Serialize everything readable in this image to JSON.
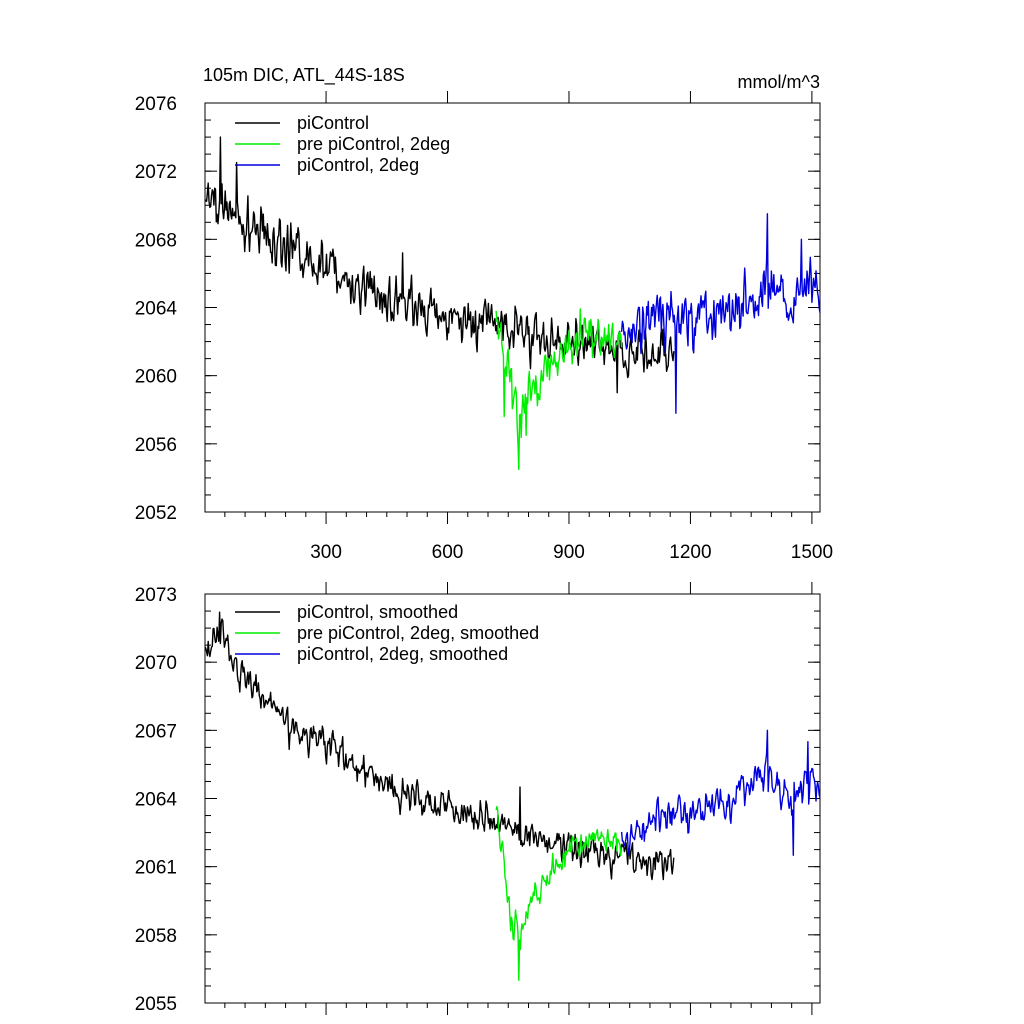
{
  "chart_data": [
    {
      "type": "line",
      "title_left": "105m DIC, ATL_44S-18S",
      "title_right": "mmol/m^3",
      "xlim": [
        1,
        1520
      ],
      "ylim": [
        2052,
        2076
      ],
      "yticks": [
        2052,
        2056,
        2060,
        2064,
        2068,
        2072,
        2076
      ],
      "xticks": [
        300,
        600,
        900,
        1200,
        1500
      ],
      "show_xtick_labels": true,
      "legend": "top-left",
      "series": [
        {
          "name": "piControl",
          "color": "#000000",
          "x_range": [
            1,
            1160
          ],
          "trend": [
            [
              1,
              2070.5
            ],
            [
              100,
              2069.0
            ],
            [
              200,
              2067.5
            ],
            [
              300,
              2066.3
            ],
            [
              400,
              2065.2
            ],
            [
              500,
              2064.2
            ],
            [
              600,
              2063.6
            ],
            [
              700,
              2063.0
            ],
            [
              800,
              2062.3
            ],
            [
              900,
              2061.9
            ],
            [
              1000,
              2061.6
            ],
            [
              1100,
              2061.3
            ],
            [
              1160,
              2061.2
            ]
          ],
          "noise": 1.2,
          "spikes": [
            [
              40,
              2074.0
            ],
            [
              80,
              2072.5
            ],
            [
              490,
              2067.2
            ],
            [
              1020,
              2059.0
            ]
          ]
        },
        {
          "name": "pre piControl, 2deg",
          "color": "#00ee00",
          "x_range": [
            720,
            1030
          ],
          "trend": [
            [
              720,
              2063.8
            ],
            [
              745,
              2061.0
            ],
            [
              760,
              2059.0
            ],
            [
              778,
              2057.0
            ],
            [
              800,
              2059.0
            ],
            [
              830,
              2059.8
            ],
            [
              870,
              2061.0
            ],
            [
              910,
              2062.0
            ],
            [
              960,
              2062.5
            ],
            [
              1030,
              2062.0
            ]
          ],
          "noise": 1.1,
          "spikes": [
            [
              740,
              2057.6
            ],
            [
              776,
              2054.5
            ],
            [
              795,
              2056.5
            ]
          ]
        },
        {
          "name": "piControl, 2deg",
          "color": "#0000dd",
          "x_range": [
            1030,
            1520
          ],
          "trend": [
            [
              1030,
              2062.0
            ],
            [
              1100,
              2063.2
            ],
            [
              1150,
              2063.6
            ],
            [
              1200,
              2063.2
            ],
            [
              1300,
              2063.8
            ],
            [
              1360,
              2065.0
            ],
            [
              1400,
              2065.2
            ],
            [
              1450,
              2064.0
            ],
            [
              1500,
              2065.5
            ],
            [
              1520,
              2064.0
            ]
          ],
          "noise": 1.3,
          "spikes": [
            [
              1165,
              2057.8
            ],
            [
              1390,
              2069.5
            ],
            [
              1475,
              2068.0
            ]
          ]
        }
      ]
    },
    {
      "type": "line",
      "xlim": [
        1,
        1520
      ],
      "ylim": [
        2055,
        2073
      ],
      "yticks": [
        2055,
        2058,
        2061,
        2064,
        2067,
        2070,
        2073
      ],
      "xticks": [
        300,
        600,
        900,
        1200,
        1500
      ],
      "show_xtick_labels": false,
      "legend": "top-left",
      "series": [
        {
          "name": "piControl, smoothed",
          "color": "#000000",
          "x_range": [
            1,
            1160
          ],
          "trend": [
            [
              1,
              2070.5
            ],
            [
              40,
              2071.5
            ],
            [
              100,
              2069.0
            ],
            [
              200,
              2067.5
            ],
            [
              300,
              2066.3
            ],
            [
              400,
              2065.2
            ],
            [
              500,
              2064.2
            ],
            [
              600,
              2063.6
            ],
            [
              700,
              2063.0
            ],
            [
              800,
              2062.3
            ],
            [
              900,
              2061.9
            ],
            [
              1000,
              2061.4
            ],
            [
              1100,
              2061.0
            ],
            [
              1160,
              2061.2
            ]
          ],
          "noise": 0.6,
          "spikes": [
            [
              38,
              2072.2
            ],
            [
              780,
              2064.5
            ]
          ]
        },
        {
          "name": "pre piControl, 2deg, smoothed",
          "color": "#00ee00",
          "x_range": [
            720,
            1030
          ],
          "trend": [
            [
              720,
              2063.3
            ],
            [
              745,
              2060.5
            ],
            [
              760,
              2058.5
            ],
            [
              778,
              2057.8
            ],
            [
              800,
              2059.3
            ],
            [
              830,
              2060.0
            ],
            [
              870,
              2061.0
            ],
            [
              910,
              2062.0
            ],
            [
              960,
              2062.2
            ],
            [
              1030,
              2062.0
            ]
          ],
          "noise": 0.55,
          "spikes": [
            [
              776,
              2056.0
            ]
          ]
        },
        {
          "name": "piControl, 2deg, smoothed",
          "color": "#0000dd",
          "x_range": [
            1030,
            1520
          ],
          "trend": [
            [
              1030,
              2062.0
            ],
            [
              1100,
              2063.0
            ],
            [
              1150,
              2063.4
            ],
            [
              1200,
              2063.2
            ],
            [
              1300,
              2063.8
            ],
            [
              1360,
              2065.0
            ],
            [
              1400,
              2065.0
            ],
            [
              1450,
              2063.8
            ],
            [
              1500,
              2065.0
            ],
            [
              1520,
              2064.0
            ]
          ],
          "noise": 0.7,
          "spikes": [
            [
              1390,
              2067.0
            ],
            [
              1455,
              2061.5
            ],
            [
              1490,
              2066.5
            ]
          ]
        }
      ]
    }
  ]
}
